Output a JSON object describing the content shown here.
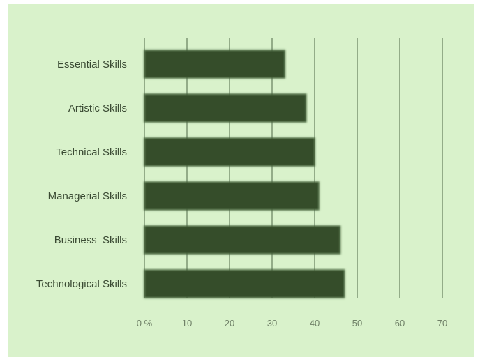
{
  "chart_data": {
    "type": "bar",
    "orientation": "horizontal",
    "title": "",
    "xlabel": "",
    "ylabel": "",
    "categories": [
      "Essential Skills",
      "Artistic Skills",
      "Technical Skills",
      "Managerial Skills",
      "Business  Skills",
      "Technological Skills"
    ],
    "values": [
      33,
      38,
      40,
      41,
      46,
      47
    ],
    "xlim": [
      0,
      70
    ],
    "xticks": [
      0,
      10,
      20,
      30,
      40,
      50,
      60,
      70
    ],
    "xtick_labels": [
      "0 %",
      "10",
      "20",
      "30",
      "40",
      "50",
      "60",
      "70"
    ],
    "grid": "vertical",
    "legend": "none",
    "colors": {
      "background": "#d9f2cb",
      "bar": "#344d2c",
      "bar_edge": "#4f6e44",
      "gridline": "#4d6646",
      "text": "#3a4a33",
      "tick_text": "#6f8067"
    }
  }
}
